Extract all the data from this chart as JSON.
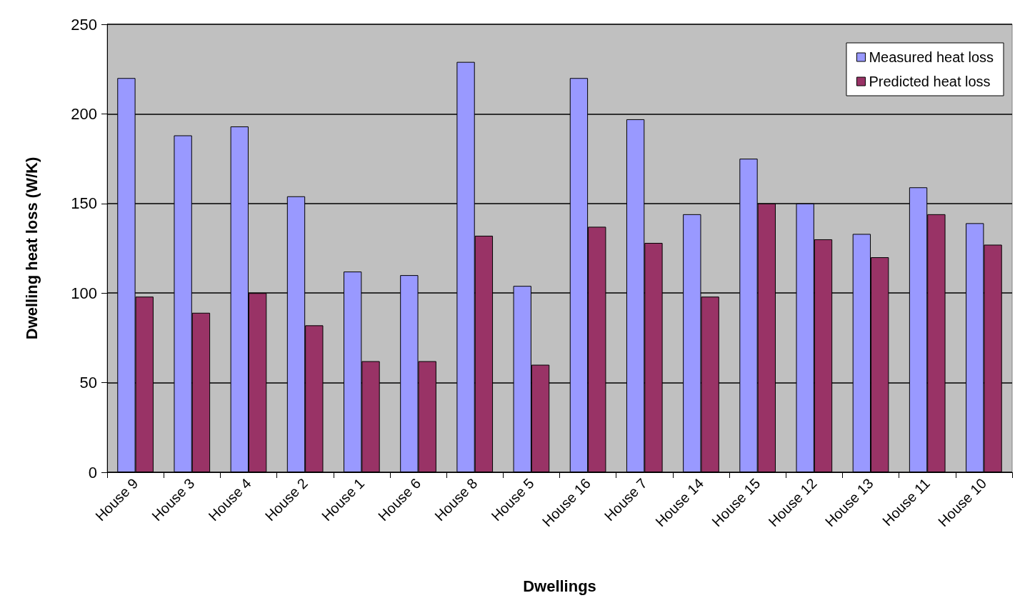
{
  "chart_data": {
    "type": "bar",
    "xlabel": "Dwellings",
    "ylabel": "Dwelling heat loss (W/K)",
    "categories": [
      "House 9",
      "House 3",
      "House 4",
      "House 2",
      "House 1",
      "House 6",
      "House 8",
      "House 5",
      "House 16",
      "House 7",
      "House 14",
      "House 15",
      "House 12",
      "House 13",
      "House 11",
      "House 10"
    ],
    "series": [
      {
        "name": "Measured heat loss",
        "color": "#9999ff",
        "values": [
          220,
          188,
          193,
          154,
          112,
          110,
          229,
          104,
          220,
          197,
          144,
          175,
          150,
          133,
          159,
          139
        ]
      },
      {
        "name": "Predicted heat loss",
        "color": "#993366",
        "values": [
          98,
          89,
          100,
          82,
          62,
          62,
          132,
          60,
          137,
          128,
          98,
          150,
          130,
          120,
          144,
          127
        ]
      }
    ],
    "ylim": [
      0,
      250
    ],
    "yticks": [
      0,
      50,
      100,
      150,
      200,
      250
    ],
    "grid": "y",
    "legend": "top right"
  }
}
